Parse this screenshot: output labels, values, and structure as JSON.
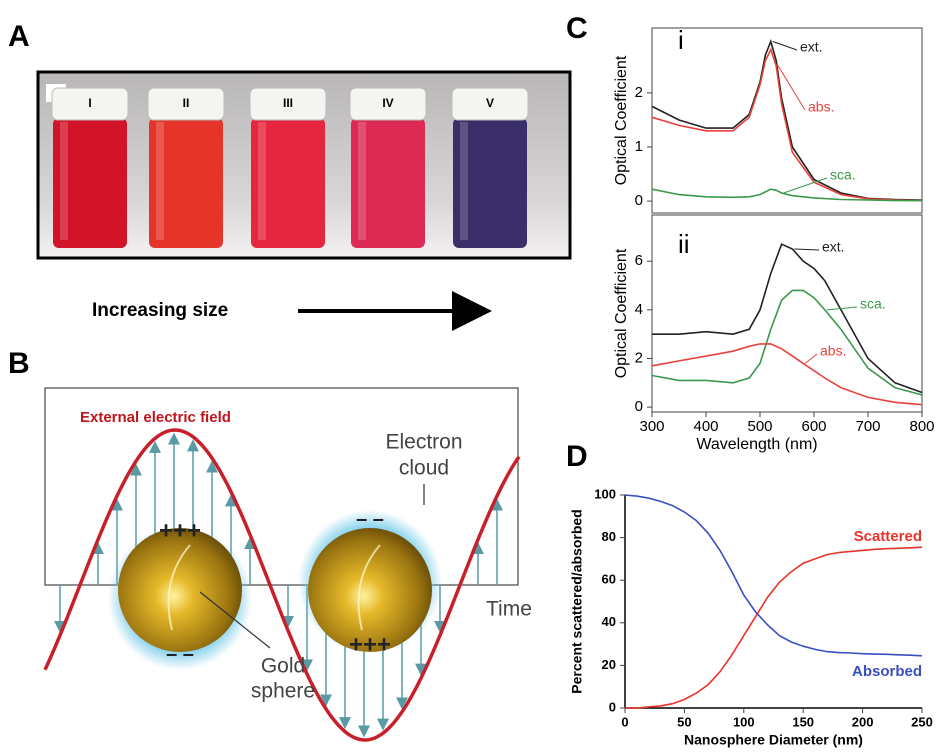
{
  "panel_labels": [
    "A",
    "B",
    "C",
    "D"
  ],
  "panel_a": {
    "vial_labels": [
      "I",
      "II",
      "III",
      "IV",
      "V"
    ],
    "caption": "Increasing size"
  },
  "panel_b": {
    "field_label": "External electric field",
    "electron_cloud": [
      "Electron",
      "cloud"
    ],
    "gold_sphere": [
      "Gold",
      "sphere"
    ],
    "time_label": "Time",
    "positive_charge": "+++",
    "negative_charge": "– –"
  },
  "chart_data": [
    {
      "type": "line",
      "subtitle": "i",
      "ylabel": "Optical Coefficient",
      "x": [
        300,
        350,
        400,
        450,
        480,
        500,
        510,
        520,
        530,
        540,
        560,
        600,
        650,
        700,
        750,
        800
      ],
      "xlim": [
        300,
        800
      ],
      "ylim": [
        -0.22,
        3.2
      ],
      "yticks": [
        0,
        1,
        2
      ],
      "series": [
        {
          "name": "ext.",
          "color": "#222222",
          "values": [
            1.75,
            1.5,
            1.35,
            1.35,
            1.6,
            2.2,
            2.7,
            2.95,
            2.6,
            1.9,
            1.0,
            0.4,
            0.15,
            0.05,
            0.03,
            0.02
          ]
        },
        {
          "name": "abs.",
          "color": "#e8413c",
          "values": [
            1.55,
            1.4,
            1.3,
            1.3,
            1.55,
            2.15,
            2.6,
            2.8,
            2.5,
            1.8,
            0.9,
            0.35,
            0.12,
            0.04,
            0.02,
            0.01
          ]
        },
        {
          "name": "sca.",
          "color": "#3a9a4a",
          "values": [
            0.22,
            0.12,
            0.08,
            0.07,
            0.08,
            0.12,
            0.17,
            0.22,
            0.2,
            0.15,
            0.1,
            0.06,
            0.03,
            0.02,
            0.01,
            0.01
          ]
        }
      ]
    },
    {
      "type": "line",
      "subtitle": "ii",
      "ylabel": "Optical Coefficient",
      "xlabel": "Wavelength (nm)",
      "x": [
        300,
        350,
        400,
        450,
        480,
        500,
        520,
        540,
        560,
        580,
        600,
        620,
        650,
        700,
        750,
        800
      ],
      "xlim": [
        300,
        800
      ],
      "ylim": [
        -0.2,
        7.9
      ],
      "yticks": [
        0,
        2,
        4,
        6
      ],
      "xticks": [
        300,
        400,
        500,
        600,
        700,
        800
      ],
      "series": [
        {
          "name": "ext.",
          "color": "#222222",
          "values": [
            3.0,
            3.0,
            3.1,
            3.0,
            3.2,
            4.0,
            5.5,
            6.7,
            6.5,
            6.0,
            5.7,
            5.2,
            4.0,
            2.0,
            1.0,
            0.6
          ]
        },
        {
          "name": "sca.",
          "color": "#3a9a4a",
          "values": [
            1.3,
            1.1,
            1.1,
            1.0,
            1.2,
            1.8,
            3.2,
            4.4,
            4.8,
            4.8,
            4.5,
            4.0,
            3.2,
            1.6,
            0.8,
            0.5
          ]
        },
        {
          "name": "abs.",
          "color": "#e8413c",
          "values": [
            1.7,
            1.9,
            2.1,
            2.3,
            2.5,
            2.6,
            2.6,
            2.4,
            2.1,
            1.8,
            1.5,
            1.2,
            0.8,
            0.4,
            0.2,
            0.1
          ]
        }
      ]
    },
    {
      "type": "line",
      "ylabel": "Percent scattered/absorbed",
      "xlabel": "Nanosphere Diameter (nm)",
      "x": [
        0,
        10,
        20,
        30,
        40,
        50,
        60,
        70,
        80,
        90,
        100,
        110,
        120,
        130,
        140,
        150,
        160,
        170,
        180,
        190,
        200,
        210,
        220,
        230,
        240,
        250
      ],
      "xlim": [
        0,
        250
      ],
      "ylim": [
        0,
        100
      ],
      "xticks": [
        0,
        50,
        100,
        150,
        200,
        250
      ],
      "yticks": [
        0,
        20,
        40,
        60,
        80,
        100
      ],
      "series": [
        {
          "name": "Scattered",
          "color": "#e8322a",
          "values": [
            0,
            0,
            0.5,
            1,
            2,
            4,
            7,
            11,
            17,
            25,
            34,
            43,
            52,
            59,
            64,
            68,
            70,
            72,
            73,
            73.5,
            74,
            74.5,
            74.8,
            75,
            75.2,
            75.5
          ]
        },
        {
          "name": "Absorbed",
          "color": "#3a4fc0",
          "values": [
            100,
            99.5,
            98.5,
            97,
            95,
            92,
            88,
            82,
            74,
            64,
            53,
            45,
            39,
            34,
            31,
            29,
            27.5,
            26.5,
            26,
            25.8,
            25.5,
            25.3,
            25.2,
            25,
            24.8,
            24.5
          ]
        }
      ]
    }
  ]
}
